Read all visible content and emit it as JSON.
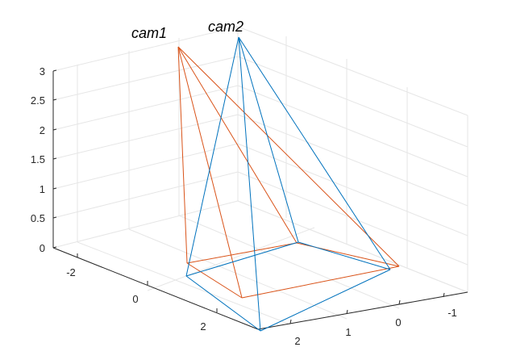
{
  "figure": {
    "camera_labels": [
      "cam1",
      "cam2"
    ],
    "z_ticks": [
      "0",
      "0.5",
      "1",
      "1.5",
      "2",
      "2.5",
      "3"
    ],
    "left_axis_ticks": [
      "-2",
      "0",
      "2"
    ],
    "right_axis_ticks": [
      "2",
      "1",
      "0",
      "-1"
    ],
    "colors": {
      "cam1": "#D95319",
      "cam2": "#0072BD",
      "grid": "#e6e6e6",
      "axis": "#262626"
    }
  }
}
